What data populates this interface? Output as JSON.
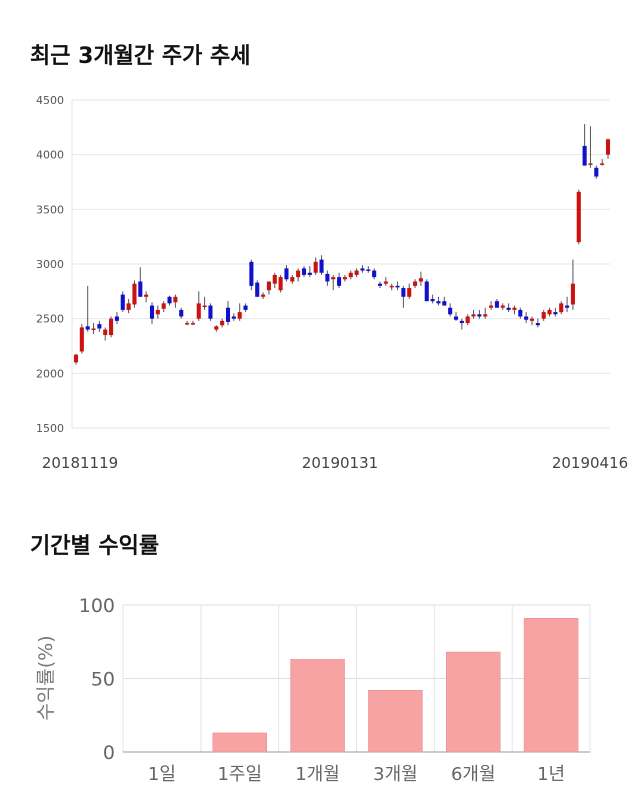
{
  "section1_title": "최근 3개월간 주가 추세",
  "section2_title": "기간별 수익률",
  "chart_data": [
    {
      "type": "candlestick",
      "title": "최근 3개월간 주가 추세",
      "ylim": [
        1500,
        4500
      ],
      "y_ticks": [
        1500,
        2000,
        2500,
        3000,
        3500,
        4000,
        4500
      ],
      "x_tick_labels": [
        "20181119",
        "20190131",
        "20190416"
      ],
      "colors": {
        "up": "#cc1111",
        "down": "#1111cc"
      },
      "candles": [
        [
          2100,
          2180,
          2080,
          2170
        ],
        [
          2200,
          2450,
          2180,
          2420
        ],
        [
          2430,
          2800,
          2380,
          2400
        ],
        [
          2400,
          2460,
          2360,
          2410
        ],
        [
          2450,
          2480,
          2380,
          2410
        ],
        [
          2350,
          2420,
          2300,
          2400
        ],
        [
          2350,
          2520,
          2330,
          2500
        ],
        [
          2520,
          2560,
          2450,
          2480
        ],
        [
          2720,
          2750,
          2560,
          2580
        ],
        [
          2580,
          2680,
          2550,
          2640
        ],
        [
          2630,
          2850,
          2600,
          2820
        ],
        [
          2840,
          2970,
          2700,
          2700
        ],
        [
          2700,
          2750,
          2650,
          2720
        ],
        [
          2620,
          2650,
          2450,
          2500
        ],
        [
          2540,
          2620,
          2500,
          2580
        ],
        [
          2590,
          2660,
          2560,
          2640
        ],
        [
          2700,
          2710,
          2620,
          2640
        ],
        [
          2650,
          2720,
          2600,
          2700
        ],
        [
          2580,
          2600,
          2500,
          2520
        ],
        [
          2460,
          2480,
          2440,
          2460
        ],
        [
          2460,
          2480,
          2440,
          2460
        ],
        [
          2500,
          2750,
          2480,
          2640
        ],
        [
          2620,
          2700,
          2580,
          2620
        ],
        [
          2620,
          2640,
          2480,
          2500
        ],
        [
          2400,
          2440,
          2380,
          2430
        ],
        [
          2440,
          2500,
          2420,
          2480
        ],
        [
          2600,
          2660,
          2440,
          2470
        ],
        [
          2520,
          2550,
          2480,
          2500
        ],
        [
          2500,
          2640,
          2480,
          2560
        ],
        [
          2620,
          2640,
          2560,
          2580
        ],
        [
          3020,
          3040,
          2760,
          2800
        ],
        [
          2830,
          2850,
          2700,
          2700
        ],
        [
          2700,
          2740,
          2680,
          2720
        ],
        [
          2760,
          2840,
          2720,
          2840
        ],
        [
          2820,
          2920,
          2780,
          2900
        ],
        [
          2760,
          2900,
          2740,
          2880
        ],
        [
          2960,
          2990,
          2840,
          2860
        ],
        [
          2840,
          2900,
          2820,
          2880
        ],
        [
          2880,
          2960,
          2840,
          2940
        ],
        [
          2960,
          2980,
          2880,
          2900
        ],
        [
          2920,
          2980,
          2880,
          2900
        ],
        [
          2920,
          3060,
          2900,
          3020
        ],
        [
          3040,
          3080,
          2900,
          2920
        ],
        [
          2910,
          2940,
          2800,
          2840
        ],
        [
          2860,
          2900,
          2760,
          2880
        ],
        [
          2880,
          2920,
          2780,
          2800
        ],
        [
          2860,
          2900,
          2840,
          2880
        ],
        [
          2880,
          2940,
          2860,
          2920
        ],
        [
          2900,
          2960,
          2880,
          2940
        ],
        [
          2960,
          2990,
          2920,
          2940
        ],
        [
          2950,
          2980,
          2920,
          2940
        ],
        [
          2940,
          2960,
          2860,
          2880
        ],
        [
          2820,
          2840,
          2780,
          2800
        ],
        [
          2820,
          2880,
          2800,
          2840
        ],
        [
          2800,
          2820,
          2760,
          2800
        ],
        [
          2800,
          2840,
          2760,
          2790
        ],
        [
          2780,
          2800,
          2600,
          2700
        ],
        [
          2700,
          2820,
          2680,
          2780
        ],
        [
          2800,
          2860,
          2780,
          2840
        ],
        [
          2840,
          2930,
          2800,
          2870
        ],
        [
          2840,
          2860,
          2660,
          2660
        ],
        [
          2680,
          2720,
          2640,
          2660
        ],
        [
          2660,
          2700,
          2620,
          2640
        ],
        [
          2660,
          2700,
          2620,
          2620
        ],
        [
          2600,
          2640,
          2520,
          2540
        ],
        [
          2520,
          2560,
          2480,
          2490
        ],
        [
          2480,
          2500,
          2400,
          2460
        ],
        [
          2460,
          2540,
          2440,
          2520
        ],
        [
          2520,
          2580,
          2500,
          2540
        ],
        [
          2540,
          2580,
          2500,
          2520
        ],
        [
          2520,
          2600,
          2500,
          2540
        ],
        [
          2600,
          2660,
          2580,
          2620
        ],
        [
          2660,
          2680,
          2600,
          2600
        ],
        [
          2600,
          2640,
          2580,
          2620
        ],
        [
          2600,
          2640,
          2560,
          2580
        ],
        [
          2580,
          2620,
          2540,
          2600
        ],
        [
          2580,
          2600,
          2500,
          2520
        ],
        [
          2520,
          2560,
          2460,
          2490
        ],
        [
          2480,
          2520,
          2440,
          2500
        ],
        [
          2460,
          2500,
          2420,
          2440
        ],
        [
          2500,
          2580,
          2480,
          2560
        ],
        [
          2540,
          2600,
          2520,
          2580
        ],
        [
          2560,
          2600,
          2520,
          2540
        ],
        [
          2560,
          2660,
          2540,
          2640
        ],
        [
          2620,
          2700,
          2560,
          2600
        ],
        [
          2630,
          3040,
          2580,
          2820
        ],
        [
          3200,
          3680,
          3180,
          3660
        ],
        [
          4080,
          4280,
          3900,
          3900
        ],
        [
          3920,
          4260,
          3880,
          3920
        ],
        [
          3880,
          3900,
          3780,
          3800
        ],
        [
          3920,
          3960,
          3900,
          3920
        ],
        [
          4000,
          4150,
          3960,
          4140
        ]
      ]
    },
    {
      "type": "bar",
      "title": "기간별 수익률",
      "ylabel": "수익률(%)",
      "categories": [
        "1일",
        "1주일",
        "1개월",
        "3개월",
        "6개월",
        "1년"
      ],
      "values": [
        0,
        13,
        63,
        42,
        68,
        91
      ],
      "ylim": [
        0,
        100
      ],
      "y_ticks": [
        0,
        50,
        100
      ],
      "color": "#f7a3a3"
    }
  ]
}
